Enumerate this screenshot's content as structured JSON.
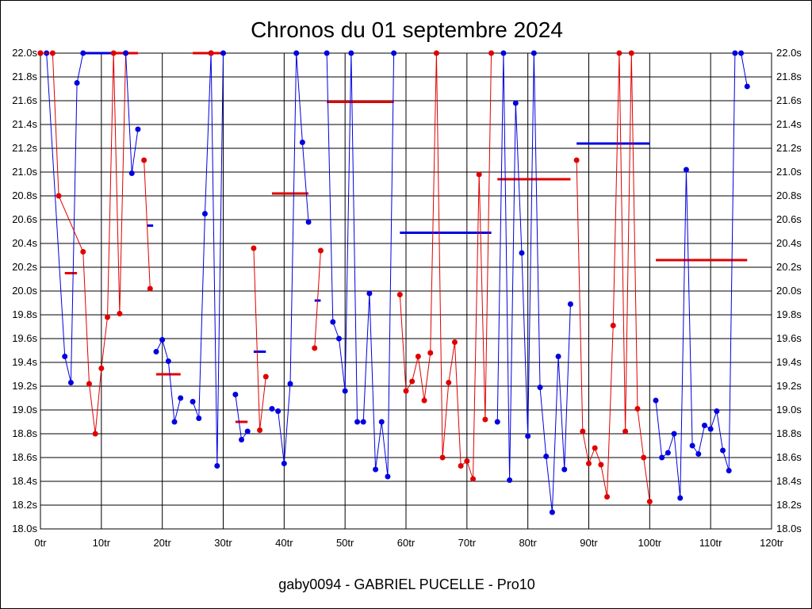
{
  "chart_data": {
    "type": "line",
    "title": "Chronos du 01 septembre 2024",
    "footer": "gaby0094 - GABRIEL PUCELLE - Pro10",
    "x_axis": {
      "min": 0,
      "max": 120,
      "step": 10,
      "tick_suffix": "tr"
    },
    "y_axis": {
      "min": 18.0,
      "max": 22.0,
      "step": 0.2,
      "tick_suffix": "s",
      "decimals": 1,
      "labels_both_sides": true
    },
    "grid": true,
    "colors": {
      "red": "#e00000",
      "blue": "#0000e0"
    },
    "series": [
      {
        "color": "blue",
        "points": [
          [
            0,
            22.0
          ],
          [
            1,
            22.0
          ],
          [
            4,
            19.45
          ],
          [
            5,
            19.23
          ],
          [
            6,
            21.75
          ],
          [
            7,
            22.0
          ]
        ]
      },
      {
        "color": "red",
        "points": [
          [
            0,
            22.0
          ],
          [
            2,
            22.0
          ],
          [
            3,
            20.8
          ],
          [
            7,
            20.33
          ],
          [
            8,
            19.22
          ],
          [
            9,
            18.8
          ],
          [
            10,
            19.35
          ],
          [
            11,
            19.78
          ],
          [
            12,
            22.0
          ],
          [
            13,
            19.81
          ],
          [
            14,
            22.0
          ]
        ]
      },
      {
        "color": "blue",
        "points": [
          [
            14,
            22.0
          ],
          [
            15,
            20.99
          ],
          [
            16,
            21.36
          ]
        ]
      },
      {
        "color": "red",
        "points": [
          [
            17,
            21.1
          ],
          [
            18,
            20.02
          ]
        ]
      },
      {
        "color": "blue",
        "points": [
          [
            19,
            19.49
          ],
          [
            20,
            19.59
          ],
          [
            21,
            19.41
          ],
          [
            22,
            18.9
          ],
          [
            23,
            19.1
          ]
        ]
      },
      {
        "color": "blue",
        "points": [
          [
            25,
            19.07
          ],
          [
            26,
            18.93
          ],
          [
            27,
            20.65
          ],
          [
            28,
            22.0
          ],
          [
            29,
            18.53
          ],
          [
            30,
            22.0
          ]
        ]
      },
      {
        "color": "red",
        "points": [
          [
            28,
            22.0
          ]
        ]
      },
      {
        "color": "blue",
        "points": [
          [
            32,
            19.13
          ],
          [
            33,
            18.75
          ],
          [
            34,
            18.82
          ]
        ]
      },
      {
        "color": "red",
        "points": [
          [
            35,
            20.36
          ],
          [
            36,
            18.83
          ],
          [
            37,
            19.28
          ]
        ]
      },
      {
        "color": "blue",
        "points": [
          [
            38,
            19.01
          ],
          [
            39,
            18.99
          ],
          [
            40,
            18.55
          ],
          [
            41,
            19.22
          ],
          [
            42,
            22.0
          ],
          [
            43,
            21.25
          ],
          [
            44,
            20.58
          ]
        ]
      },
      {
        "color": "red",
        "points": [
          [
            45,
            19.52
          ],
          [
            46,
            20.34
          ]
        ]
      },
      {
        "color": "blue",
        "points": [
          [
            47,
            22.0
          ],
          [
            48,
            19.74
          ],
          [
            49,
            19.6
          ],
          [
            50,
            19.16
          ],
          [
            51,
            22.0
          ],
          [
            52,
            18.9
          ],
          [
            53,
            18.9
          ],
          [
            54,
            19.98
          ],
          [
            55,
            18.5
          ],
          [
            56,
            18.9
          ],
          [
            57,
            18.44
          ],
          [
            58,
            22.0
          ]
        ]
      },
      {
        "color": "red",
        "points": [
          [
            59,
            19.97
          ],
          [
            60,
            19.16
          ],
          [
            61,
            19.24
          ],
          [
            62,
            19.45
          ],
          [
            63,
            19.08
          ],
          [
            64,
            19.48
          ],
          [
            65,
            22.0
          ],
          [
            66,
            18.6
          ],
          [
            67,
            19.23
          ],
          [
            68,
            19.57
          ],
          [
            69,
            18.53
          ],
          [
            70,
            18.57
          ],
          [
            71,
            18.42
          ],
          [
            72,
            20.98
          ],
          [
            73,
            18.92
          ],
          [
            74,
            22.0
          ]
        ]
      },
      {
        "color": "blue",
        "points": [
          [
            75,
            18.9
          ],
          [
            76,
            22.0
          ],
          [
            77,
            18.41
          ],
          [
            78,
            21.58
          ],
          [
            79,
            20.32
          ],
          [
            80,
            18.78
          ],
          [
            81,
            22.0
          ],
          [
            82,
            19.19
          ],
          [
            83,
            18.61
          ],
          [
            84,
            18.14
          ],
          [
            85,
            19.45
          ],
          [
            86,
            18.5
          ],
          [
            87,
            19.89
          ]
        ]
      },
      {
        "color": "red",
        "points": [
          [
            88,
            21.1
          ],
          [
            89,
            18.82
          ],
          [
            90,
            18.55
          ],
          [
            91,
            18.68
          ],
          [
            92,
            18.54
          ],
          [
            93,
            18.27
          ],
          [
            94,
            19.71
          ],
          [
            95,
            22.0
          ],
          [
            96,
            18.82
          ],
          [
            97,
            22.0
          ],
          [
            98,
            19.01
          ],
          [
            99,
            18.6
          ],
          [
            100,
            18.23
          ]
        ]
      },
      {
        "color": "blue",
        "points": [
          [
            101,
            19.08
          ],
          [
            102,
            18.6
          ],
          [
            103,
            18.64
          ],
          [
            104,
            18.8
          ],
          [
            105,
            18.26
          ],
          [
            106,
            21.02
          ],
          [
            107,
            18.7
          ],
          [
            108,
            18.63
          ],
          [
            109,
            18.87
          ],
          [
            110,
            18.84
          ],
          [
            111,
            18.99
          ],
          [
            112,
            18.66
          ],
          [
            113,
            18.49
          ],
          [
            114,
            22.0
          ],
          [
            115,
            22.0
          ],
          [
            116,
            21.72
          ]
        ]
      }
    ],
    "averages": [
      {
        "color": "red",
        "x_from": 4,
        "x_to": 6,
        "value": 20.15
      },
      {
        "color": "blue",
        "x_from": 7,
        "x_to": 12,
        "value": 22.0
      },
      {
        "color": "red",
        "x_from": 12,
        "x_to": 16,
        "value": 22.0
      },
      {
        "color": "blue",
        "x_from": 17.5,
        "x_to": 18.5,
        "value": 20.55
      },
      {
        "color": "red",
        "x_from": 19,
        "x_to": 23,
        "value": 19.3
      },
      {
        "color": "red",
        "x_from": 25,
        "x_to": 30,
        "value": 22.0
      },
      {
        "color": "red",
        "x_from": 32,
        "x_to": 34,
        "value": 18.9
      },
      {
        "color": "blue",
        "x_from": 35,
        "x_to": 37,
        "value": 19.49
      },
      {
        "color": "red",
        "x_from": 38,
        "x_to": 44,
        "value": 20.82
      },
      {
        "color": "blue",
        "x_from": 45,
        "x_to": 46,
        "value": 19.92
      },
      {
        "color": "red",
        "x_from": 47,
        "x_to": 58,
        "value": 21.59
      },
      {
        "color": "blue",
        "x_from": 59,
        "x_to": 74,
        "value": 20.49
      },
      {
        "color": "red",
        "x_from": 75,
        "x_to": 87,
        "value": 20.94
      },
      {
        "color": "blue",
        "x_from": 88,
        "x_to": 100,
        "value": 21.24
      },
      {
        "color": "red",
        "x_from": 101,
        "x_to": 116,
        "value": 20.26
      }
    ]
  }
}
